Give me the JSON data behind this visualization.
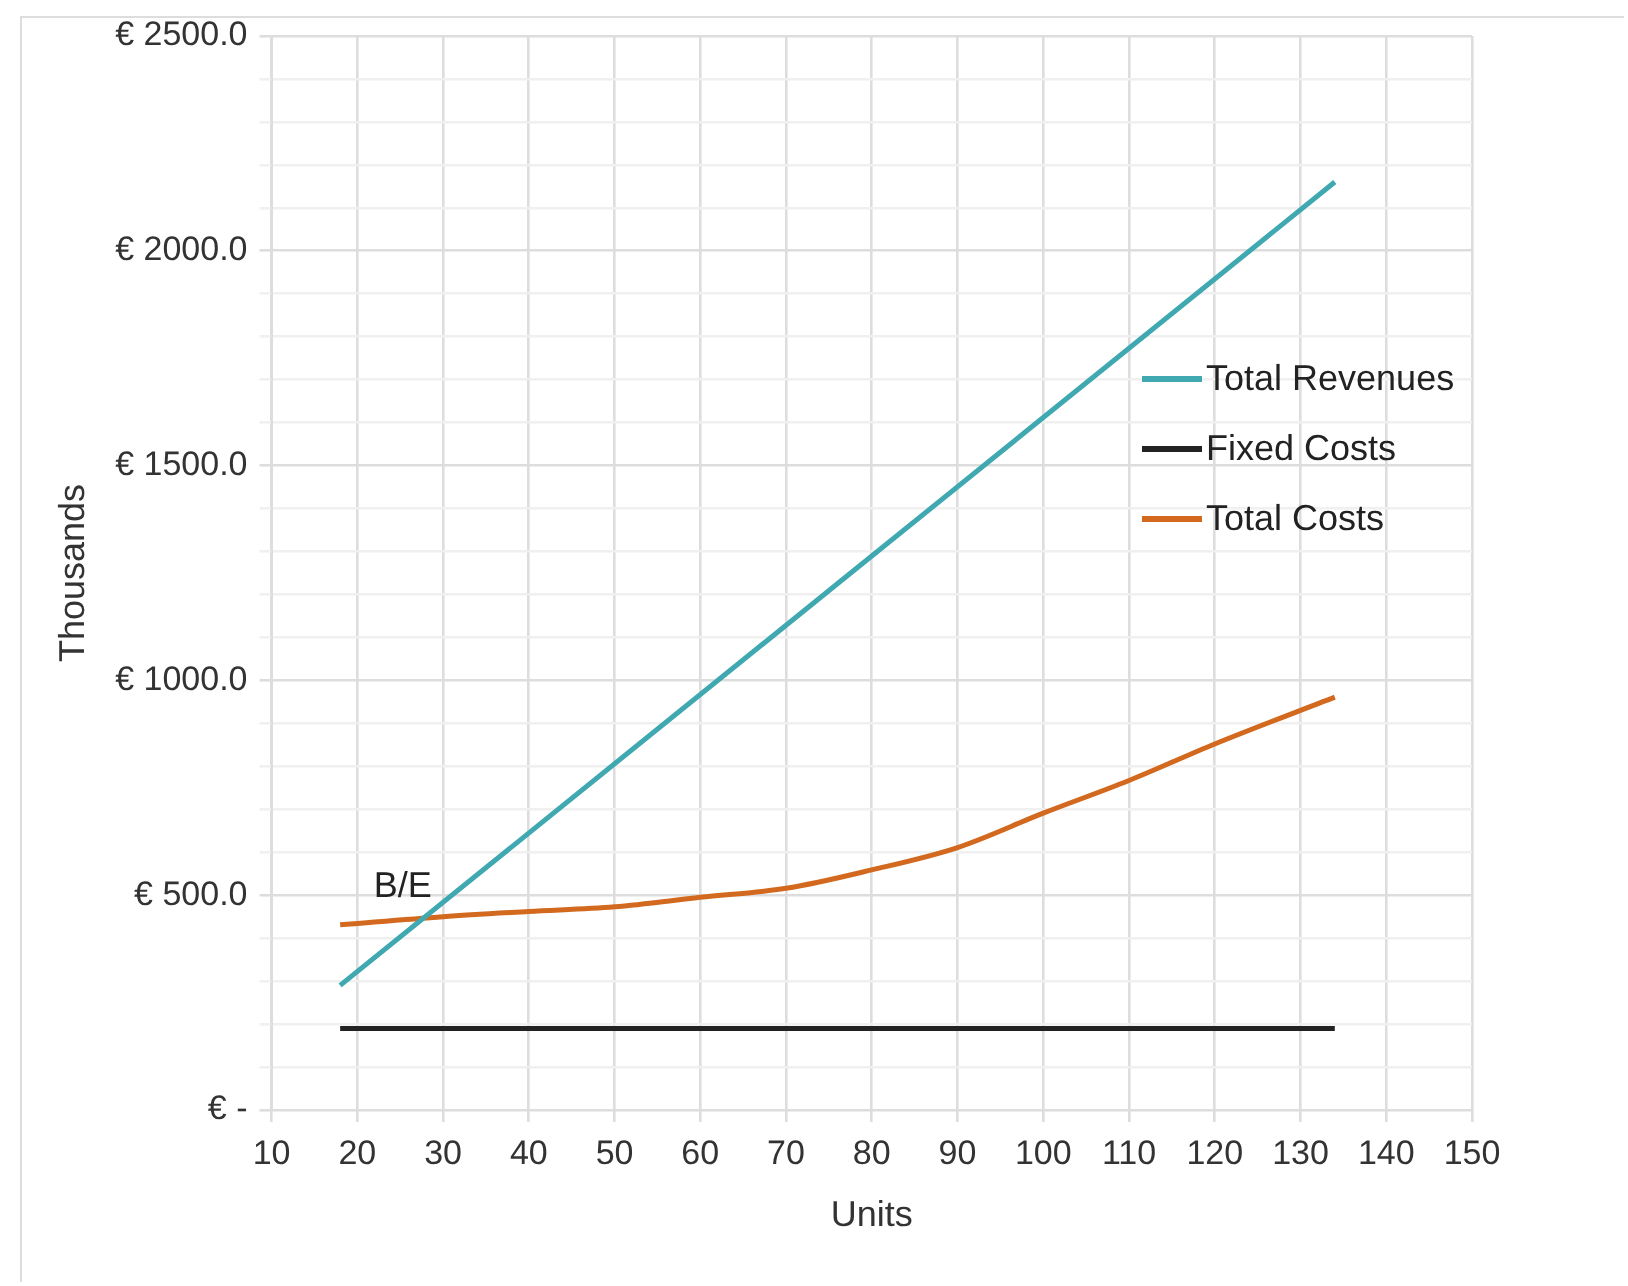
{
  "chart_data": {
    "type": "line",
    "xlabel": "Units",
    "ylabel": "Thousands",
    "xlim": [
      10,
      150
    ],
    "xticks": [
      10,
      20,
      30,
      40,
      50,
      60,
      70,
      80,
      90,
      100,
      110,
      120,
      130,
      140,
      150
    ],
    "ylim": [
      0,
      2500
    ],
    "yticks": [
      {
        "value": 0,
        "label": "€ -"
      },
      {
        "value": 100,
        "label": null
      },
      {
        "value": 200,
        "label": null
      },
      {
        "value": 300,
        "label": null
      },
      {
        "value": 400,
        "label": null
      },
      {
        "value": 500,
        "label": "€ 500.0"
      },
      {
        "value": 600,
        "label": null
      },
      {
        "value": 700,
        "label": null
      },
      {
        "value": 800,
        "label": null
      },
      {
        "value": 900,
        "label": null
      },
      {
        "value": 1000,
        "label": "€ 1000.0"
      },
      {
        "value": 1100,
        "label": null
      },
      {
        "value": 1200,
        "label": null
      },
      {
        "value": 1300,
        "label": null
      },
      {
        "value": 1400,
        "label": null
      },
      {
        "value": 1500,
        "label": "€ 1500.0"
      },
      {
        "value": 1600,
        "label": null
      },
      {
        "value": 1700,
        "label": null
      },
      {
        "value": 1800,
        "label": null
      },
      {
        "value": 1900,
        "label": null
      },
      {
        "value": 2000,
        "label": "€ 2000.0"
      },
      {
        "value": 2100,
        "label": null
      },
      {
        "value": 2200,
        "label": null
      },
      {
        "value": 2300,
        "label": null
      },
      {
        "value": 2400,
        "label": null
      },
      {
        "value": 2500,
        "label": "€ 2500.0"
      }
    ],
    "grid": true,
    "legend": "right",
    "marker": "none",
    "line_style": "solid",
    "series": [
      {
        "name": "Total Revenues",
        "color": "#3fa8b0",
        "x": [
          18,
          134
        ],
        "values": [
          290,
          2160
        ]
      },
      {
        "name": "Fixed Costs",
        "color": "#222222",
        "x": [
          18,
          134
        ],
        "values": [
          190,
          190
        ]
      },
      {
        "name": "Total Costs",
        "color": "#d2691e",
        "x": [
          18,
          30,
          40,
          50,
          60,
          70,
          80,
          90,
          100,
          110,
          120,
          134
        ],
        "values": [
          431,
          450,
          462,
          473,
          495,
          516,
          559,
          611,
          691,
          767,
          852,
          961
        ]
      }
    ],
    "annotations": [
      {
        "text": "B/E",
        "x": 28,
        "y": 450
      }
    ]
  }
}
